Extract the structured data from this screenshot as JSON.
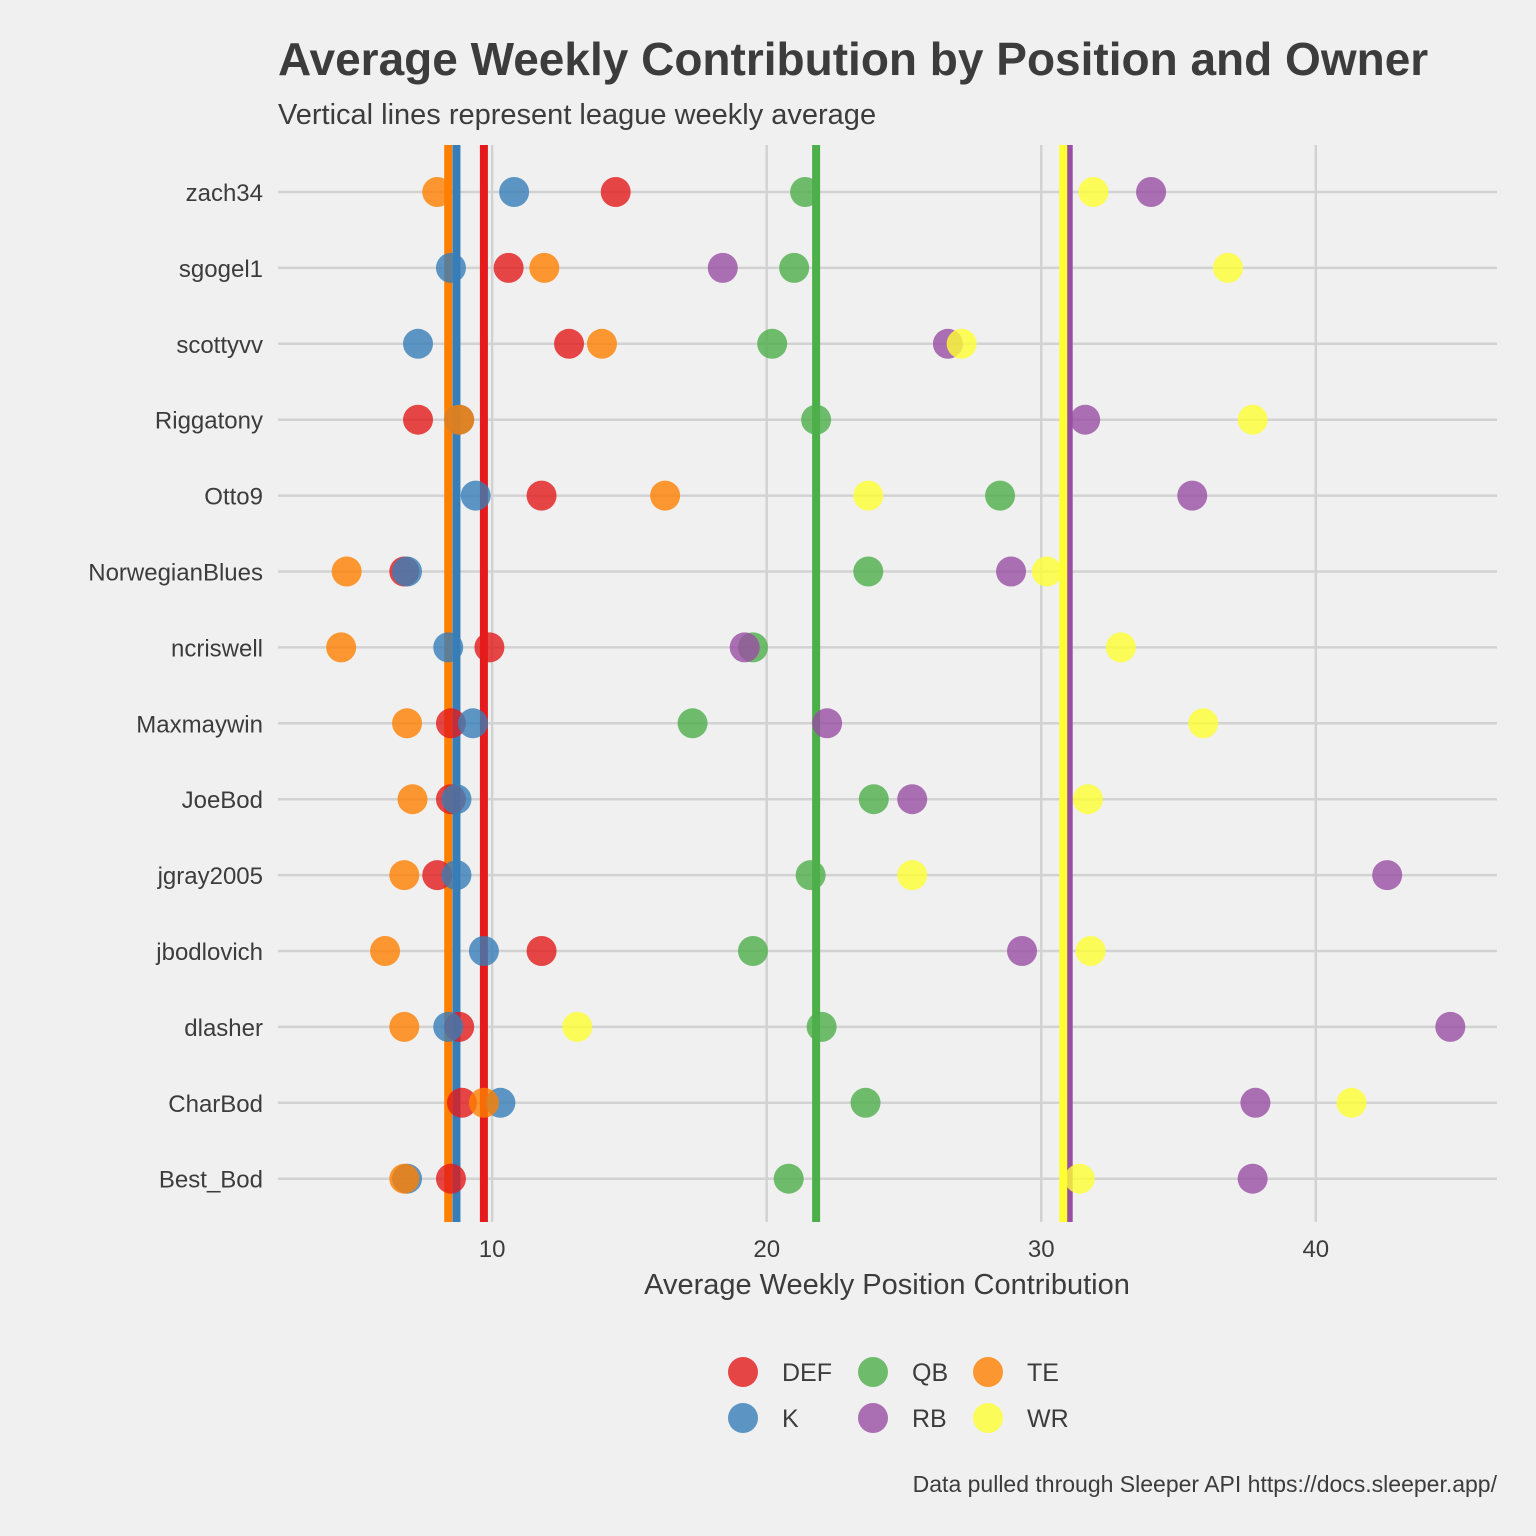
{
  "chart_data": {
    "type": "scatter",
    "title": "Average Weekly Contribution by Position and Owner",
    "subtitle": "Vertical lines represent league weekly average",
    "xlabel": "Average Weekly Position Contribution",
    "ylabel": "",
    "caption": "Data pulled through Sleeper API https://docs.sleeper.app/",
    "xlim": [
      2.2,
      46.6
    ],
    "xticks": [
      10,
      20,
      30,
      40
    ],
    "grid": true,
    "legend_position": "bottom",
    "categories": [
      "zach34",
      "sgogel1",
      "scottyvv",
      "Riggatony",
      "Otto9",
      "NorwegianBlues",
      "ncriswell",
      "Maxmaywin",
      "JoeBod",
      "jgray2005",
      "jbodlovich",
      "dlasher",
      "CharBod",
      "Best_Bod"
    ],
    "series": [
      {
        "name": "DEF",
        "color": "#e41a1c",
        "average": 9.7,
        "values": [
          14.5,
          10.6,
          12.8,
          7.3,
          11.8,
          6.8,
          9.9,
          8.5,
          8.5,
          8.0,
          11.8,
          8.8,
          8.9,
          8.5
        ]
      },
      {
        "name": "K",
        "color": "#377eb8",
        "average": 8.7,
        "values": [
          10.8,
          8.5,
          7.3,
          8.8,
          9.4,
          6.9,
          8.4,
          9.3,
          8.7,
          8.7,
          9.7,
          8.4,
          10.3,
          6.9
        ]
      },
      {
        "name": "QB",
        "color": "#4daf4a",
        "average": 21.8,
        "values": [
          21.4,
          21.0,
          20.2,
          21.8,
          28.5,
          23.7,
          19.5,
          17.3,
          23.9,
          21.6,
          19.5,
          22.0,
          23.6,
          20.8
        ]
      },
      {
        "name": "RB",
        "color": "#984ea3",
        "average": 31.0,
        "values": [
          34.0,
          18.4,
          26.6,
          31.6,
          35.5,
          28.9,
          19.2,
          22.2,
          25.3,
          42.6,
          29.3,
          44.9,
          37.8,
          37.7
        ]
      },
      {
        "name": "TE",
        "color": "#ff7f00",
        "average": 8.4,
        "values": [
          8.0,
          11.9,
          14.0,
          8.8,
          16.3,
          4.7,
          4.5,
          6.9,
          7.1,
          6.8,
          6.1,
          6.8,
          9.7,
          6.8
        ]
      },
      {
        "name": "WR",
        "color": "#ffff33",
        "average": 30.8,
        "values": [
          31.9,
          36.8,
          27.1,
          37.7,
          23.7,
          30.2,
          32.9,
          35.9,
          31.7,
          25.3,
          31.8,
          13.1,
          41.3,
          31.4
        ]
      }
    ]
  }
}
